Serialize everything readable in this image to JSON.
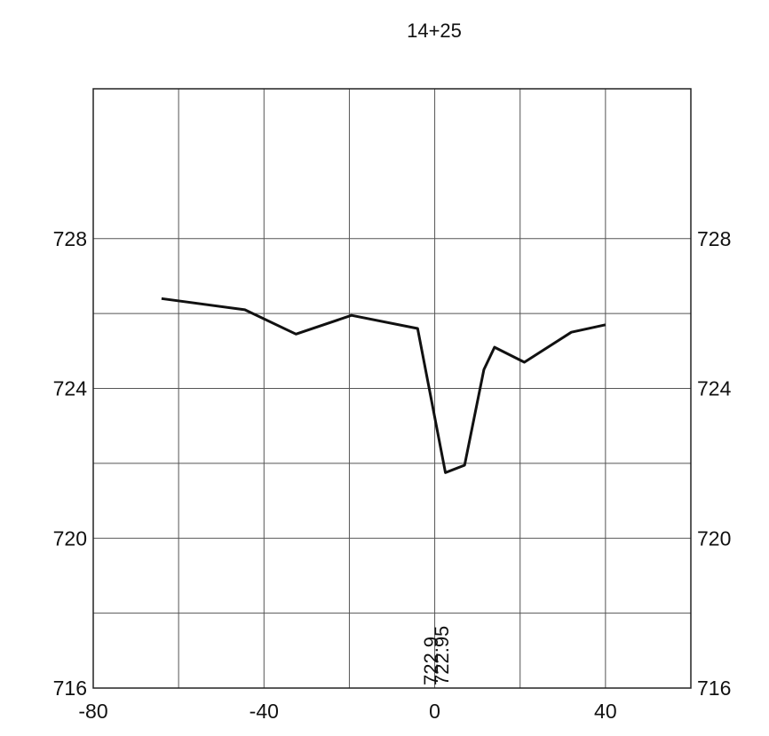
{
  "chart_data": {
    "type": "line",
    "title": "14+25",
    "xlim": [
      -80,
      60
    ],
    "ylim": [
      716,
      732
    ],
    "grid": true,
    "x_ticks": [
      {
        "value": -80,
        "label": "-80"
      },
      {
        "value": -40,
        "label": "-40"
      },
      {
        "value": 0,
        "label": "0"
      },
      {
        "value": 40,
        "label": "40"
      }
    ],
    "y_ticks": [
      {
        "value": 716,
        "label": "716"
      },
      {
        "value": 720,
        "label": "720"
      },
      {
        "value": 724,
        "label": "724"
      },
      {
        "value": 728,
        "label": "728"
      }
    ],
    "x_gridlines": [
      -60,
      -40,
      -20,
      0,
      20,
      40
    ],
    "y_gridlines": [
      718,
      720,
      722,
      724,
      726,
      728
    ],
    "series": [
      {
        "color": "#111111",
        "points": [
          [
            -64,
            726.4
          ],
          [
            -44.5,
            726.1
          ],
          [
            -32.5,
            725.45
          ],
          [
            -19.5,
            725.95
          ],
          [
            -4,
            725.6
          ],
          [
            2.5,
            721.75
          ],
          [
            7,
            721.95
          ],
          [
            11.5,
            724.5
          ],
          [
            14,
            725.1
          ],
          [
            21,
            724.7
          ],
          [
            32,
            725.5
          ],
          [
            40,
            725.7
          ]
        ]
      }
    ],
    "annotations": [
      {
        "x": -1,
        "text": "722.9"
      },
      {
        "x": 1.5,
        "text": "722.95"
      }
    ]
  }
}
